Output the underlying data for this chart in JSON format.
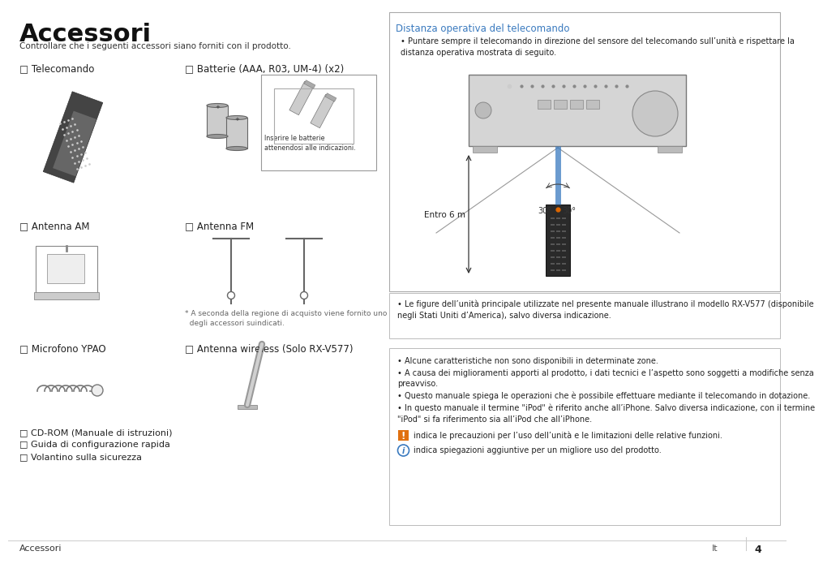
{
  "title": "Accessori",
  "subtitle": "Controllare che i seguenti accessori siano forniti con il prodotto.",
  "bg_color": "#ffffff",
  "box_title": "Distanza operativa del telecomando",
  "box_title_color": "#3a7abf",
  "box_bullet": "Puntare sempre il telecomando in direzione del sensore del telecomando sull’unità e rispettare la\ndistanza operativa mostrata di seguito.",
  "entro_6m": "Entro 6 m",
  "angle_label_30_left": "30°",
  "angle_label_30_right": "30°",
  "battery_caption": "Inserire le batterie\nattenendosi alle indicazioni.",
  "footnote": "* A seconda della regione di acquisto viene fornito uno\n  degli accessori suindicati.",
  "right_box_text1": "Le figure dell’unità principale utilizzate nel presente manuale illustrano il modello RX-V577 (disponibile\nnegli Stati Uniti d’America), salvo diversa indicazione.",
  "right_bullets": [
    "Alcune caratteristiche non sono disponibili in determinate zone.",
    "A causa dei miglioramenti apporti al prodotto, i dati tecnici e l’aspetto sono soggetti a modifiche senza\npreavviso.",
    "Questo manuale spiega le operazioni che è possibile effettuare mediante il telecomando in dotazione.",
    "In questo manuale il termine \"iPod\" è riferito anche all’iPhone. Salvo diversa indicazione, con il termine\n\"iPod\" si fa riferimento sia all’iPod che all’iPhone."
  ],
  "icon_bullet1": "indica le precauzioni per l’uso dell’unità e le limitazioni delle relative funzioni.",
  "icon_bullet2": "indica spiegazioni aggiuntive per un migliore uso del prodotto.",
  "footer_left": "Accessori",
  "footer_lang": "It",
  "footer_page": "4"
}
